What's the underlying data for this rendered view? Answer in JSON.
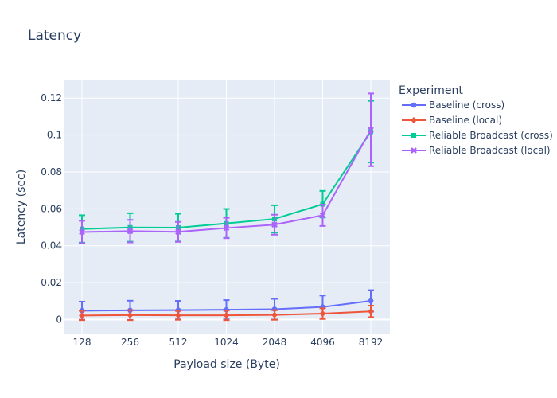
{
  "chart_data": {
    "type": "line",
    "title": "Latency",
    "xlabel": "Payload size (Byte)",
    "ylabel": "Latency (sec)",
    "categories": [
      "128",
      "256",
      "512",
      "1024",
      "2048",
      "4096",
      "8192"
    ],
    "y_ticks": [
      "0",
      "0.02",
      "0.04",
      "0.06",
      "0.08",
      "0.1",
      "0.12"
    ],
    "y_tick_values": [
      0,
      0.02,
      0.04,
      0.06,
      0.08,
      0.1,
      0.12
    ],
    "ylim": [
      -0.008,
      0.13
    ],
    "grid": true,
    "legend_title": "Experiment",
    "legend_position": "right",
    "series": [
      {
        "name": "Baseline (cross)",
        "color": "#636efa",
        "marker": "circle",
        "values": [
          0.0048,
          0.005,
          0.0051,
          0.0053,
          0.0056,
          0.0068,
          0.0101
        ],
        "errors": [
          0.0049,
          0.0052,
          0.005,
          0.0052,
          0.0056,
          0.0062,
          0.0058
        ]
      },
      {
        "name": "Baseline (local)",
        "color": "#ef553b",
        "marker": "diamond",
        "values": [
          0.0022,
          0.0024,
          0.0023,
          0.0023,
          0.0025,
          0.0032,
          0.0044
        ],
        "errors": [
          0.0025,
          0.0027,
          0.0024,
          0.0026,
          0.0026,
          0.0029,
          0.0031
        ]
      },
      {
        "name": "Reliable Broadcast (cross)",
        "color": "#00cc96",
        "marker": "square",
        "values": [
          0.0491,
          0.0499,
          0.0498,
          0.0521,
          0.0545,
          0.0625,
          0.1018
        ],
        "errors": [
          0.0074,
          0.0077,
          0.0075,
          0.0078,
          0.0074,
          0.0072,
          0.0167
        ]
      },
      {
        "name": "Reliable Broadcast (local)",
        "color": "#ab63fa",
        "marker": "x",
        "values": [
          0.0474,
          0.0479,
          0.0475,
          0.0496,
          0.0514,
          0.0565,
          0.1028
        ],
        "errors": [
          0.0061,
          0.0061,
          0.0054,
          0.0055,
          0.0054,
          0.0058,
          0.0197
        ]
      }
    ]
  }
}
